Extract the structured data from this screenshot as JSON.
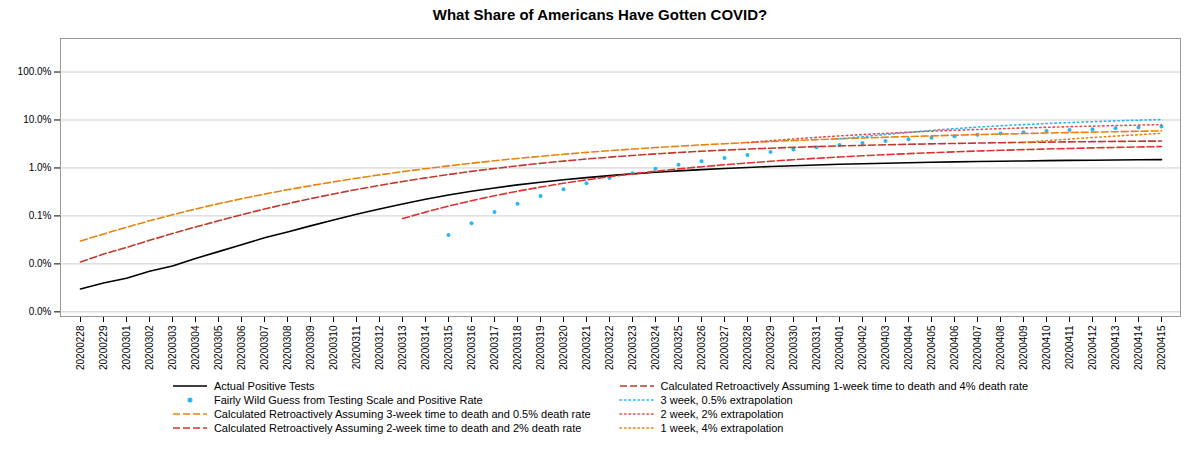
{
  "chart_data": {
    "type": "line",
    "title": "What Share of Americans Have Gotten COVID?",
    "x": [
      "20200228",
      "20200229",
      "20200301",
      "20200302",
      "20200303",
      "20200304",
      "20200305",
      "20200306",
      "20200307",
      "20200308",
      "20200309",
      "20200310",
      "20200311",
      "20200312",
      "20200313",
      "20200314",
      "20200315",
      "20200316",
      "20200317",
      "20200318",
      "20200319",
      "20200320",
      "20200321",
      "20200322",
      "20200323",
      "20200324",
      "20200325",
      "20200326",
      "20200327",
      "20200328",
      "20200329",
      "20200330",
      "20200331",
      "20200401",
      "20200402",
      "20200403",
      "20200404",
      "20200405",
      "20200406",
      "20200407",
      "20200408",
      "20200409",
      "20200410",
      "20200411",
      "20200412",
      "20200413",
      "20200414",
      "20200415"
    ],
    "series": [
      {
        "name": "Actual Positive Tests",
        "color": "#000000",
        "line_style": "solid",
        "values": [
          3e-05,
          4e-05,
          5e-05,
          7e-05,
          9e-05,
          0.00013,
          0.00018,
          0.00025,
          0.00035,
          0.00046,
          0.00062,
          0.00082,
          0.00108,
          0.0014,
          0.00178,
          0.00222,
          0.00272,
          0.00326,
          0.00383,
          0.00443,
          0.00505,
          0.00567,
          0.0063,
          0.00692,
          0.00753,
          0.00812,
          0.00869,
          0.00924,
          0.00976,
          0.01025,
          0.01071,
          0.01114,
          0.01154,
          0.01191,
          0.01225,
          0.01257,
          0.01286,
          0.01313,
          0.01338,
          0.01361,
          0.01382,
          0.01401,
          0.01419,
          0.01436,
          0.01451,
          0.01465,
          0.01478,
          0.0149
        ]
      },
      {
        "name": "Fairly Wild Guess from Testing Scale and Positive Rate",
        "color": "#29B6F6",
        "type": "scatter",
        "marker": "dot",
        "values": [
          null,
          null,
          null,
          null,
          null,
          null,
          null,
          null,
          null,
          null,
          null,
          null,
          null,
          null,
          null,
          null,
          0.0004,
          0.0007,
          0.0012,
          0.0018,
          0.0026,
          0.0036,
          0.0048,
          0.0062,
          0.0078,
          0.0096,
          0.0116,
          0.0138,
          0.0162,
          0.0187,
          0.0214,
          0.0242,
          0.0271,
          0.0301,
          0.0332,
          0.0363,
          0.0395,
          0.0427,
          0.0459,
          0.0491,
          0.0523,
          0.0555,
          0.0586,
          0.0616,
          0.0645,
          0.0673,
          0.0701,
          0.0728
        ]
      },
      {
        "name": "Calculated Retroactively Assuming 3-week time to death and 0.5% death rate",
        "color": "#E8820C",
        "line_style": "dashed",
        "values": [
          0.0003,
          0.00042,
          0.00058,
          0.00079,
          0.00106,
          0.00139,
          0.0018,
          0.00228,
          0.00285,
          0.00351,
          0.00427,
          0.00513,
          0.0061,
          0.00718,
          0.00837,
          0.00966,
          0.01106,
          0.01255,
          0.01413,
          0.01578,
          0.0175,
          0.01927,
          0.02108,
          0.02291,
          0.02476,
          0.02661,
          0.02845,
          0.03028,
          0.03208,
          0.03385,
          0.03559,
          0.03729,
          0.03895,
          0.04057,
          0.04215,
          0.04369,
          0.04519,
          0.04665,
          0.04808,
          0.04947,
          0.05082,
          0.05213,
          0.05341,
          0.05465,
          0.05586,
          0.05704,
          0.05818,
          0.0593
        ]
      },
      {
        "name": "Calculated Retroactively Assuming 2-week time to death and 2% death rate",
        "color": "#E03030",
        "line_style": "dashed",
        "values": [
          null,
          null,
          null,
          null,
          null,
          null,
          null,
          null,
          null,
          null,
          null,
          null,
          null,
          null,
          0.00088,
          0.0012,
          0.0016,
          0.00208,
          0.00264,
          0.00328,
          0.004,
          0.00479,
          0.00565,
          0.00656,
          0.00752,
          0.00852,
          0.00955,
          0.0106,
          0.01166,
          0.01273,
          0.0138,
          0.01486,
          0.01591,
          0.01694,
          0.01795,
          0.01893,
          0.01988,
          0.0208,
          0.02168,
          0.02252,
          0.02333,
          0.0241,
          0.02483,
          0.02552,
          0.02618,
          0.0268,
          0.02739,
          0.02795
        ]
      },
      {
        "name": "Calculated Retroactively Assuming 1-week time to death and 4% death rate",
        "color": "#C0392B",
        "line_style": "dashed",
        "values": [
          0.00011,
          0.00016,
          0.00022,
          0.00031,
          0.00043,
          0.00059,
          0.00079,
          0.00106,
          0.00139,
          0.0018,
          0.00229,
          0.00287,
          0.00355,
          0.00433,
          0.00522,
          0.00621,
          0.0073,
          0.00848,
          0.00975,
          0.01109,
          0.01248,
          0.01391,
          0.01536,
          0.01681,
          0.01825,
          0.01965,
          0.02101,
          0.02231,
          0.02355,
          0.02472,
          0.02583,
          0.02687,
          0.02785,
          0.02876,
          0.02961,
          0.0304,
          0.03113,
          0.03181,
          0.03244,
          0.03303,
          0.03357,
          0.03407,
          0.03454,
          0.03497,
          0.03537,
          0.03575,
          0.0361,
          0.03642
        ]
      },
      {
        "name": "3 week, 0.5% extrapolation",
        "color": "#29B6F6",
        "line_style": "dotted",
        "values": [
          null,
          null,
          null,
          null,
          null,
          null,
          null,
          null,
          null,
          null,
          null,
          null,
          null,
          null,
          null,
          null,
          null,
          null,
          null,
          null,
          null,
          null,
          null,
          null,
          null,
          null,
          null,
          null,
          null,
          null,
          null,
          null,
          null,
          0.04057,
          0.045,
          0.0498,
          0.055,
          0.0606,
          0.066,
          0.071,
          0.0758,
          0.0802,
          0.0844,
          0.0884,
          0.0922,
          0.0958,
          0.099,
          0.102
        ]
      },
      {
        "name": "2 week, 2% extrapolation",
        "color": "#E05050",
        "line_style": "dotted",
        "values": [
          null,
          null,
          null,
          null,
          null,
          null,
          null,
          null,
          null,
          null,
          null,
          null,
          null,
          null,
          null,
          null,
          null,
          null,
          null,
          null,
          null,
          null,
          null,
          null,
          null,
          null,
          null,
          null,
          null,
          0.03385,
          0.037,
          0.0402,
          0.0434,
          0.0466,
          0.0497,
          0.0527,
          0.0556,
          0.0584,
          0.061,
          0.0635,
          0.0659,
          0.0682,
          0.0704,
          0.0725,
          0.0745,
          0.0764,
          0.0782,
          0.0799
        ]
      },
      {
        "name": "1 week, 4% extrapolation",
        "color": "#E8820C",
        "line_style": "dotted",
        "values": [
          null,
          null,
          null,
          null,
          null,
          null,
          null,
          null,
          null,
          null,
          null,
          null,
          null,
          null,
          null,
          null,
          null,
          null,
          null,
          null,
          null,
          null,
          null,
          null,
          null,
          null,
          null,
          null,
          null,
          null,
          null,
          null,
          null,
          null,
          null,
          null,
          null,
          null,
          null,
          null,
          null,
          0.03407,
          0.037,
          0.04,
          0.0431,
          0.0462,
          0.0494,
          0.0526
        ]
      }
    ],
    "ylim": [
      8e-06,
      5.0
    ],
    "yticks": [
      {
        "value": 1.0,
        "label": "100.0%"
      },
      {
        "value": 0.1,
        "label": "10.0%"
      },
      {
        "value": 0.01,
        "label": "1.0%"
      },
      {
        "value": 0.001,
        "label": "0.1%"
      },
      {
        "value": 0.0001,
        "label": "0.0%"
      },
      {
        "value": 1e-05,
        "label": "0.0%"
      }
    ],
    "log": "y",
    "grid": true,
    "legend": "bottom"
  }
}
